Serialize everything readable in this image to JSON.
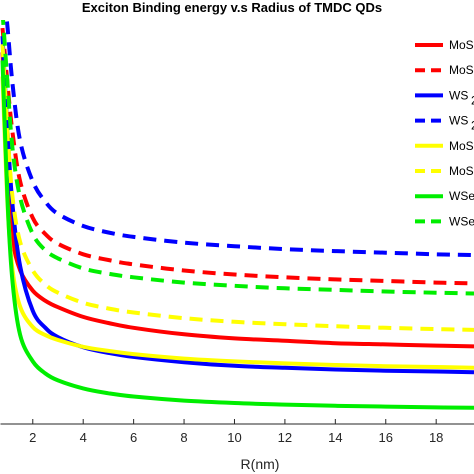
{
  "chart_data": {
    "type": "line",
    "title": "Exciton Binding energy v.s Radius of TMDC QDs",
    "xlabel": "R(nm)",
    "ylabel": "",
    "xlim": [
      0.7,
      19.5
    ],
    "ylim": [
      0,
      100
    ],
    "x_ticks": [
      2,
      4,
      6,
      8,
      10,
      12,
      14,
      16,
      18
    ],
    "x_tick_labels": [
      "2",
      "4",
      "6",
      "8",
      "10",
      "12",
      "14",
      "16",
      "18"
    ],
    "grid": false,
    "legend_placement": "top-right",
    "x": [
      0.8,
      1.0,
      1.2,
      1.5,
      2.0,
      2.5,
      3,
      4,
      5,
      6,
      8,
      10,
      12,
      14,
      16,
      18,
      19.5
    ],
    "series": [
      {
        "name": "MoS",
        "legend_sub": "",
        "color": "#ff0000",
        "dash": false,
        "values": [
          92,
          62,
          46,
          38,
          33,
          30.5,
          28.9,
          26.5,
          25.0,
          23.8,
          22.2,
          21.2,
          20.6,
          20.0,
          19.7,
          19.4,
          19.2
        ]
      },
      {
        "name": "MoS",
        "legend_sub": "",
        "color": "#ff0000",
        "dash": true,
        "values": [
          98,
          84,
          72,
          60,
          51,
          47,
          44.6,
          42.0,
          40.6,
          39.5,
          38.0,
          37.0,
          36.3,
          35.8,
          35.4,
          35.0,
          34.8
        ]
      },
      {
        "name": "WS",
        "legend_sub": "2",
        "color": "#0000ff",
        "dash": false,
        "values": [
          96,
          72,
          54,
          39,
          28,
          23.8,
          21.5,
          19.0,
          17.6,
          16.6,
          15.3,
          14.4,
          13.9,
          13.5,
          13.2,
          13.0,
          12.8
        ]
      },
      {
        "name": "WS",
        "legend_sub": "2",
        "color": "#0000ff",
        "dash": true,
        "values": [
          110,
          98,
          84,
          70,
          60,
          55,
          52.0,
          49.0,
          47.4,
          46.3,
          44.9,
          44.0,
          43.3,
          42.8,
          42.4,
          42.0,
          41.8
        ]
      },
      {
        "name": "MoS",
        "legend_sub": "",
        "color": "#ffff00",
        "dash": false,
        "values": [
          86,
          54,
          38,
          29,
          24,
          22.0,
          20.8,
          19.1,
          18.1,
          17.3,
          16.2,
          15.5,
          15.0,
          14.6,
          14.3,
          14.1,
          13.9
        ]
      },
      {
        "name": "MoS",
        "legend_sub": "",
        "color": "#ffff00",
        "dash": true,
        "values": [
          94,
          72,
          56,
          45,
          38,
          34.5,
          32.5,
          30.0,
          28.6,
          27.6,
          26.2,
          25.3,
          24.7,
          24.2,
          23.8,
          23.5,
          23.3
        ]
      },
      {
        "name": "WSe",
        "legend_sub": "",
        "color": "#00ee00",
        "dash": false,
        "values": [
          90,
          55,
          35,
          22,
          15.5,
          12.5,
          10.8,
          8.8,
          7.6,
          6.8,
          5.8,
          5.2,
          4.8,
          4.5,
          4.3,
          4.1,
          4.0
        ]
      },
      {
        "name": "WSe",
        "legend_sub": "",
        "color": "#00ee00",
        "dash": true,
        "values": [
          102,
          84,
          68,
          56,
          47,
          43.0,
          41.0,
          38.5,
          37.2,
          36.3,
          35.0,
          34.2,
          33.6,
          33.2,
          32.8,
          32.5,
          32.3
        ]
      }
    ]
  }
}
